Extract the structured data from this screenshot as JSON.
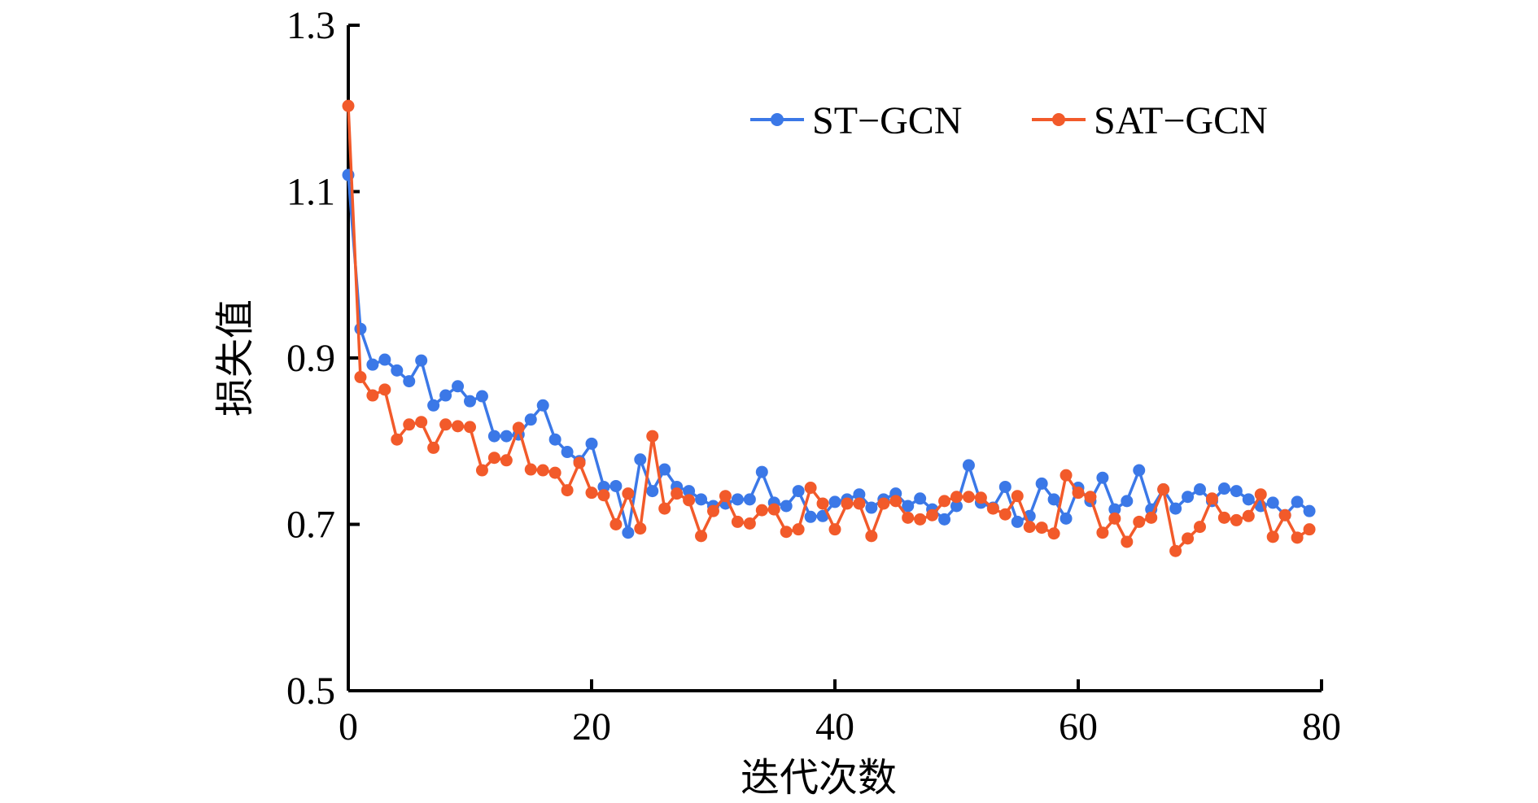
{
  "chart_data": {
    "type": "line",
    "title": "",
    "xlabel": "迭代次数",
    "ylabel": "损失值",
    "xlim": [
      0,
      80
    ],
    "ylim": [
      0.5,
      1.3
    ],
    "xticks": [
      0,
      20,
      40,
      60,
      80
    ],
    "yticks": [
      0.5,
      0.7,
      0.9,
      1.1,
      1.3
    ],
    "xtick_labels": [
      "0",
      "20",
      "40",
      "60",
      "80"
    ],
    "ytick_labels": [
      "0.5",
      "0.7",
      "0.9",
      "1.1",
      "1.3"
    ],
    "grid": false,
    "legend_position": "top-right",
    "x": [
      0,
      1,
      2,
      3,
      4,
      5,
      6,
      7,
      8,
      9,
      10,
      11,
      12,
      13,
      14,
      15,
      16,
      17,
      18,
      19,
      20,
      21,
      22,
      23,
      24,
      25,
      26,
      27,
      28,
      29,
      30,
      31,
      32,
      33,
      34,
      35,
      36,
      37,
      38,
      39,
      40,
      41,
      42,
      43,
      44,
      45,
      46,
      47,
      48,
      49,
      50,
      51,
      52,
      53,
      54,
      55,
      56,
      57,
      58,
      59,
      60,
      61,
      62,
      63,
      64,
      65,
      66,
      67,
      68,
      69,
      70,
      71,
      72,
      73,
      74,
      75,
      76,
      77,
      78,
      79
    ],
    "series": [
      {
        "name": "ST−GCN",
        "color": "#3B78E7",
        "values": [
          1.12,
          0.935,
          0.892,
          0.898,
          0.885,
          0.872,
          0.897,
          0.843,
          0.855,
          0.866,
          0.848,
          0.854,
          0.806,
          0.806,
          0.808,
          0.826,
          0.843,
          0.802,
          0.787,
          0.776,
          0.797,
          0.745,
          0.746,
          0.69,
          0.778,
          0.74,
          0.766,
          0.745,
          0.74,
          0.73,
          0.722,
          0.725,
          0.73,
          0.73,
          0.763,
          0.726,
          0.722,
          0.74,
          0.709,
          0.71,
          0.727,
          0.73,
          0.736,
          0.72,
          0.73,
          0.737,
          0.722,
          0.731,
          0.718,
          0.706,
          0.722,
          0.771,
          0.726,
          0.72,
          0.745,
          0.703,
          0.71,
          0.749,
          0.73,
          0.707,
          0.744,
          0.728,
          0.756,
          0.718,
          0.728,
          0.765,
          0.718,
          0.742,
          0.719,
          0.733,
          0.742,
          0.728,
          0.743,
          0.74,
          0.73,
          0.722,
          0.726,
          0.711,
          0.727,
          0.716
        ]
      },
      {
        "name": "SAT−GCN",
        "color": "#F25A2A",
        "values": [
          1.203,
          0.877,
          0.855,
          0.862,
          0.802,
          0.82,
          0.823,
          0.792,
          0.82,
          0.818,
          0.817,
          0.765,
          0.78,
          0.777,
          0.816,
          0.766,
          0.765,
          0.762,
          0.741,
          0.774,
          0.738,
          0.735,
          0.7,
          0.737,
          0.695,
          0.806,
          0.719,
          0.737,
          0.729,
          0.686,
          0.716,
          0.734,
          0.703,
          0.701,
          0.717,
          0.718,
          0.691,
          0.694,
          0.744,
          0.725,
          0.694,
          0.725,
          0.725,
          0.686,
          0.725,
          0.728,
          0.708,
          0.706,
          0.711,
          0.728,
          0.733,
          0.733,
          0.732,
          0.719,
          0.712,
          0.734,
          0.697,
          0.696,
          0.689,
          0.759,
          0.738,
          0.733,
          0.69,
          0.707,
          0.679,
          0.703,
          0.708,
          0.742,
          0.668,
          0.683,
          0.697,
          0.731,
          0.708,
          0.705,
          0.71,
          0.736,
          0.685,
          0.711,
          0.684,
          0.694
        ]
      }
    ]
  }
}
